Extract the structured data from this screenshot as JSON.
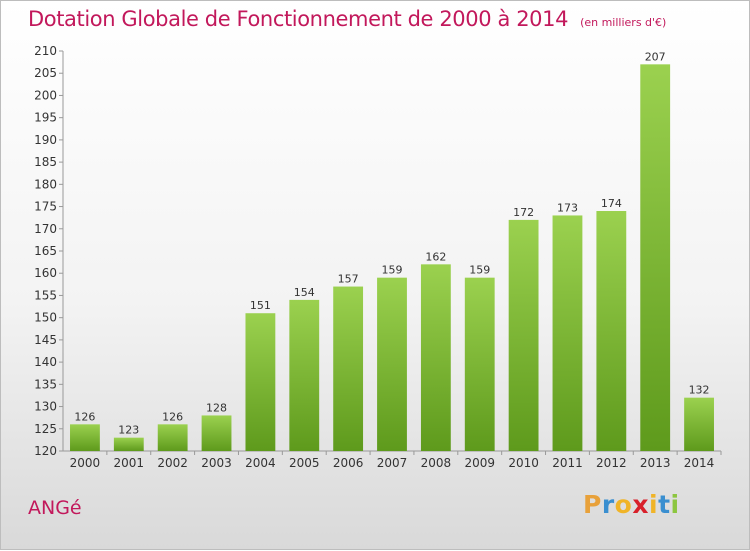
{
  "chart_data": {
    "type": "bar",
    "title": "Dotation Globale de Fonctionnement de 2000 à 2014",
    "subtitle": "(en milliers d'€)",
    "categories": [
      "2000",
      "2001",
      "2002",
      "2003",
      "2004",
      "2005",
      "2006",
      "2007",
      "2008",
      "2009",
      "2010",
      "2011",
      "2012",
      "2013",
      "2014"
    ],
    "values": [
      126,
      123,
      126,
      128,
      151,
      154,
      157,
      159,
      162,
      159,
      172,
      173,
      174,
      207,
      132
    ],
    "ylim": [
      120,
      210
    ],
    "yticks": [
      120,
      125,
      130,
      135,
      140,
      145,
      150,
      155,
      160,
      165,
      170,
      175,
      180,
      185,
      190,
      195,
      200,
      205,
      210
    ],
    "grid": false,
    "bar_color": "#7ab32e"
  },
  "commune": "ANGé",
  "logo": {
    "letters": [
      "P",
      "r",
      "o",
      "x",
      "i",
      "t",
      "i"
    ],
    "colors": [
      "#e8a13a",
      "#3a8fd0",
      "#f0b428",
      "#d8202a",
      "#f0b428",
      "#3a8fd0",
      "#8cc63f"
    ]
  }
}
